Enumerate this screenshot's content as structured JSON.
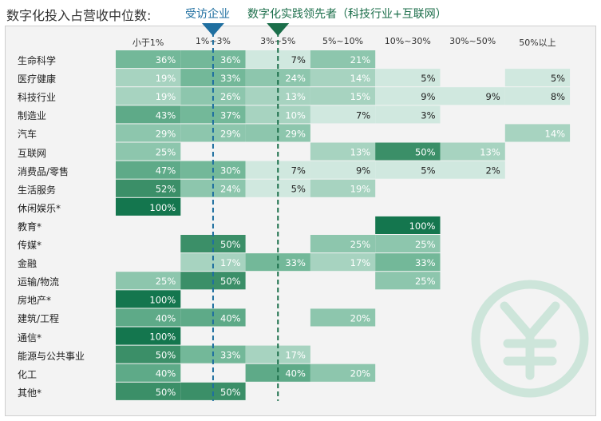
{
  "colors": {
    "c1": "#d0e8df",
    "c2": "#a7d3c0",
    "c3": "#8dc6ad",
    "c4": "#73b899",
    "c5": "#5eaa88",
    "c6": "#3b8f68",
    "c7": "#14764e",
    "marker_a": "#1f6fa0",
    "marker_b": "#1b6e4a"
  },
  "chart_data": {
    "type": "heatmap",
    "title": "数字化投入占营收中位数:",
    "legend": [
      {
        "name": "受访企业",
        "color": "#1f6fa0",
        "at": 1.5
      },
      {
        "name": "数字化实践领先者（科技行业+互联网）",
        "color": "#1b6e4a",
        "at": 2.5
      }
    ],
    "columns": [
      "小于1%",
      "1%~3%",
      "3%~5%",
      "5%~10%",
      "10%~30%",
      "30%~50%",
      "50%以上"
    ],
    "rows": [
      {
        "label": "生命科学",
        "values": [
          36,
          36,
          7,
          21,
          null,
          null,
          null
        ]
      },
      {
        "label": "医疗健康",
        "values": [
          19,
          33,
          24,
          14,
          5,
          null,
          5
        ]
      },
      {
        "label": "科技行业",
        "values": [
          19,
          26,
          13,
          15,
          9,
          9,
          8
        ]
      },
      {
        "label": "制造业",
        "values": [
          43,
          37,
          10,
          7,
          3,
          null,
          null
        ]
      },
      {
        "label": "汽车",
        "values": [
          29,
          29,
          29,
          null,
          null,
          null,
          14
        ]
      },
      {
        "label": "互联网",
        "values": [
          25,
          null,
          null,
          13,
          50,
          13,
          null
        ]
      },
      {
        "label": "消费品/零售",
        "values": [
          47,
          30,
          7,
          9,
          5,
          2,
          null
        ]
      },
      {
        "label": "生活服务",
        "values": [
          52,
          24,
          5,
          19,
          null,
          null,
          null
        ]
      },
      {
        "label": "休闲娱乐*",
        "values": [
          100,
          null,
          null,
          null,
          null,
          null,
          null
        ]
      },
      {
        "label": "教育*",
        "values": [
          null,
          null,
          null,
          null,
          100,
          null,
          null
        ]
      },
      {
        "label": "传媒*",
        "values": [
          null,
          50,
          null,
          25,
          25,
          null,
          null
        ]
      },
      {
        "label": "金融",
        "values": [
          null,
          17,
          33,
          17,
          33,
          null,
          null
        ]
      },
      {
        "label": "运输/物流",
        "values": [
          25,
          50,
          null,
          null,
          25,
          null,
          null
        ]
      },
      {
        "label": "房地产*",
        "values": [
          100,
          null,
          null,
          null,
          null,
          null,
          null
        ]
      },
      {
        "label": "建筑/工程",
        "values": [
          40,
          40,
          null,
          20,
          null,
          null,
          null
        ]
      },
      {
        "label": "通信*",
        "values": [
          100,
          null,
          null,
          null,
          null,
          null,
          null
        ]
      },
      {
        "label": "能源与公共事业",
        "values": [
          50,
          33,
          17,
          null,
          null,
          null,
          null
        ]
      },
      {
        "label": "化工",
        "values": [
          40,
          null,
          40,
          20,
          null,
          null,
          null
        ]
      },
      {
        "label": "其他*",
        "values": [
          50,
          50,
          null,
          null,
          null,
          null,
          null
        ]
      }
    ],
    "value_suffix": "%",
    "grid": false
  }
}
